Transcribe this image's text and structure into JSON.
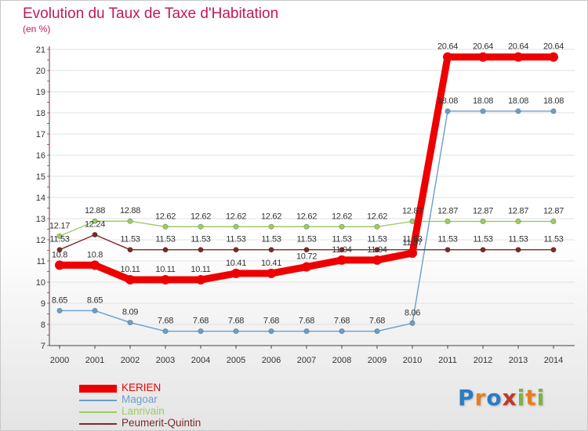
{
  "header": {
    "title": "Evolution du Taux de Taxe d'Habitation",
    "subtitle": "(en %)"
  },
  "logo": {
    "letters": [
      "P",
      "r",
      "o",
      "x",
      "i",
      "t",
      "i"
    ],
    "colors": [
      "#2b7bc4",
      "#e67e22",
      "#2b7bc4",
      "#c0392b",
      "#7cb342",
      "#e67e22",
      "#7cb342"
    ]
  },
  "chart_data": {
    "type": "line",
    "title": "Evolution du Taux de Taxe d'Habitation",
    "ylabel": "(en %)",
    "xlabel": "",
    "ylim": [
      7,
      21
    ],
    "yticks": [
      7,
      8,
      9,
      10,
      11,
      12,
      13,
      14,
      15,
      16,
      17,
      18,
      19,
      20,
      21
    ],
    "grid": "horizontal",
    "legend_position": "bottom-left",
    "x": [
      "2000",
      "2001",
      "2002",
      "2003",
      "2004",
      "2005",
      "2006",
      "2007",
      "2008",
      "2009",
      "2010",
      "2011",
      "2012",
      "2013",
      "2014"
    ],
    "series": [
      {
        "name": "Magoar",
        "color": "#6a9fcc",
        "values": [
          8.65,
          8.65,
          8.09,
          7.68,
          7.68,
          7.68,
          7.68,
          7.68,
          7.68,
          7.68,
          8.06,
          18.08,
          18.08,
          18.08,
          18.08
        ],
        "labels": [
          "8.65",
          "8.65",
          "8.09",
          "7.68",
          "7.68",
          "7.68",
          "7.68",
          "7.68",
          "7.68",
          "7.68",
          "8.06",
          "18.08",
          "18.08",
          "18.08",
          "18.08"
        ]
      },
      {
        "name": "Lanrivain",
        "color": "#9ccc65",
        "values": [
          12.17,
          12.88,
          12.88,
          12.62,
          12.62,
          12.62,
          12.62,
          12.62,
          12.62,
          12.62,
          12.87,
          12.87,
          12.87,
          12.87,
          12.87
        ],
        "labels": [
          "12.17",
          "12.88",
          "12.88",
          "12.62",
          "12.62",
          "12.62",
          "12.62",
          "12.62",
          "12.62",
          "12.62",
          "12.87",
          "12.87",
          "12.87",
          "12.87",
          "12.87"
        ]
      },
      {
        "name": "Peumerit-Quintin",
        "color": "#7b2a2a",
        "values": [
          11.53,
          12.24,
          11.53,
          11.53,
          11.53,
          11.53,
          11.53,
          11.53,
          11.53,
          11.53,
          11.53,
          11.53,
          11.53,
          11.53,
          11.53
        ],
        "labels": [
          "11.53",
          "12.24",
          "11.53",
          "11.53",
          "11.53",
          "11.53",
          "11.53",
          "11.53",
          "11.53",
          "11.53",
          "11.53",
          "11.53",
          "11.53",
          "11.53",
          "11.53"
        ]
      },
      {
        "name": "KERIEN",
        "color": "#ee0000",
        "values": [
          10.8,
          10.8,
          10.11,
          10.11,
          10.11,
          10.41,
          10.41,
          10.72,
          11.04,
          11.04,
          11.37,
          20.64,
          20.64,
          20.64,
          20.64
        ],
        "labels": [
          "10.8",
          "10.8",
          "10.11",
          "10.11",
          "10.11",
          "10.41",
          "10.41",
          "10.72",
          "11.04",
          "11.04",
          "11.37",
          "20.64",
          "20.64",
          "20.64",
          "20.64"
        ]
      }
    ],
    "legend": [
      {
        "name": "KERIEN",
        "color": "#ee0000"
      },
      {
        "name": "Magoar",
        "color": "#6a9fcc"
      },
      {
        "name": "Lanrivain",
        "color": "#9ccc65"
      },
      {
        "name": "Peumerit-Quintin",
        "color": "#7b2a2a"
      }
    ]
  }
}
